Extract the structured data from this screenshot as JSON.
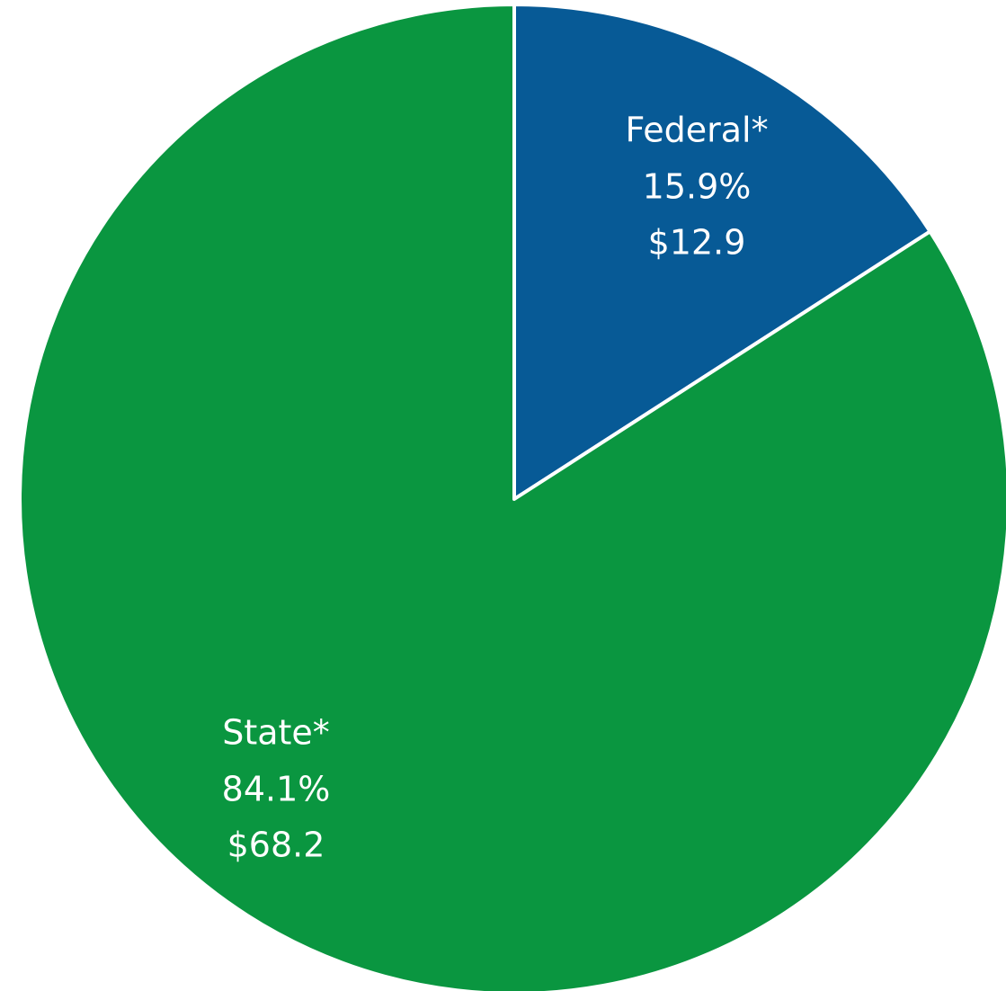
{
  "chart_data": {
    "type": "pie",
    "categories": [
      "Federal*",
      "State*"
    ],
    "values": [
      15.9,
      84.1
    ],
    "value_labels": [
      "15.9%",
      "84.1%"
    ],
    "amounts": [
      12.9,
      68.2
    ],
    "amount_labels": [
      "$12.9",
      "$68.2"
    ],
    "colors": [
      "#075a96",
      "#0a9640"
    ]
  }
}
